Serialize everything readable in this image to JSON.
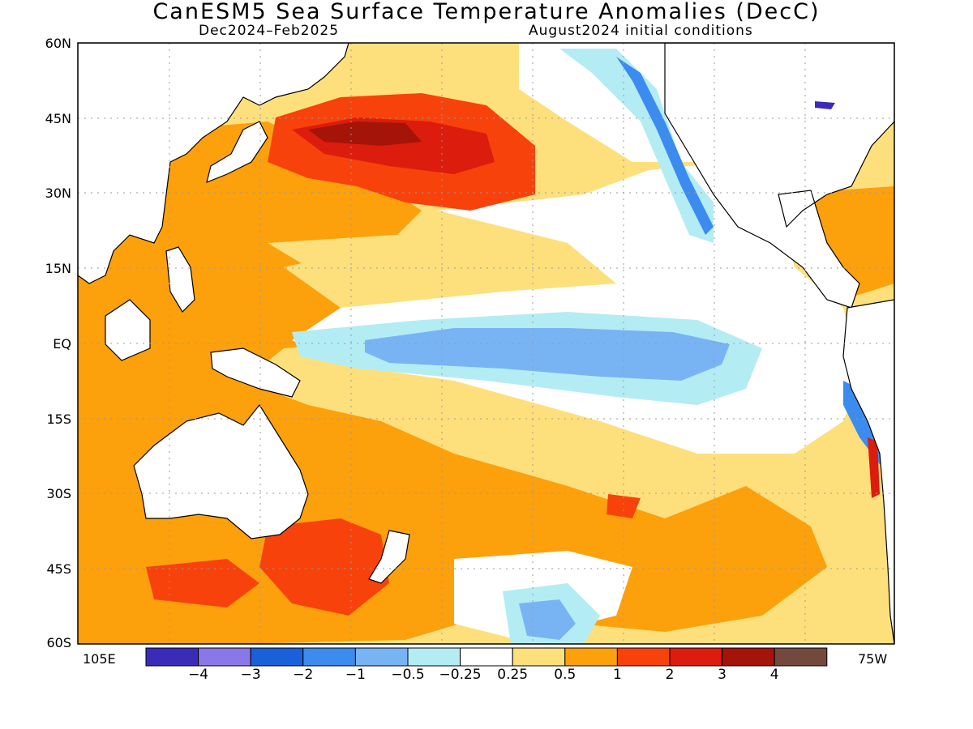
{
  "title": "CanESM5 Sea Surface Temperature Anomalies (DecC)",
  "subtitle_left": "Dec2024–Feb2025",
  "subtitle_right": "August2024 initial conditions",
  "lat_labels": [
    "60N",
    "45N",
    "30N",
    "15N",
    "EQ",
    "15S",
    "30S",
    "45S",
    "60S"
  ],
  "lon_labels": {
    "west": "105E",
    "east": "75W"
  },
  "colorbar": {
    "colors": [
      "#3a2cb8",
      "#8b78e8",
      "#1a60d8",
      "#3c8cf0",
      "#78b4f4",
      "#b4ecf4",
      "#ffffff",
      "#fde07c",
      "#fca00c",
      "#f8420c",
      "#dc1c0c",
      "#a41408",
      "#74483c"
    ],
    "labels": [
      "−4",
      "−3",
      "−2",
      "−1",
      "−0.5",
      "−0.25",
      "0.25",
      "0.5",
      "1",
      "2",
      "3",
      "4"
    ]
  },
  "regions": {
    "warm_pool": "#fca00c",
    "kuroshio_warm": "#f8420c",
    "kuroshio_core": "#dc1c0c",
    "kuroshio_peak": "#a41408",
    "mild_warm": "#fde07c",
    "equatorial_cold": "#78b4f4",
    "equatorial_cool": "#b4ecf4",
    "coastal_cold": "#3c8cf0",
    "land": "#ffffff"
  }
}
